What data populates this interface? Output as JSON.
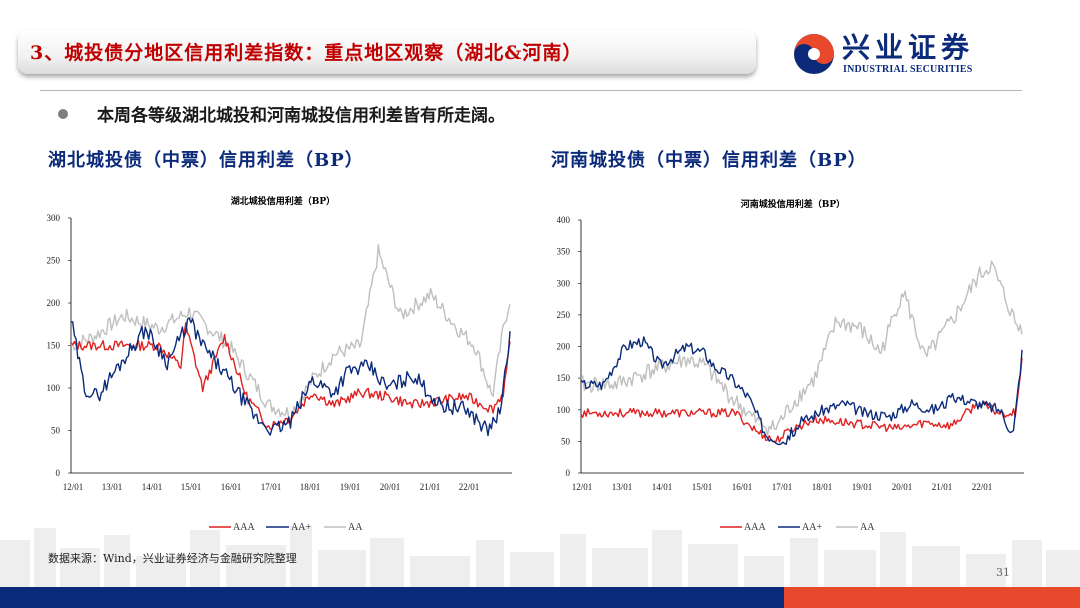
{
  "header": {
    "title": "3、城投债分地区信用利差指数：重点地区观察（湖北&河南）"
  },
  "logo": {
    "cn": "兴业证券",
    "en": "INDUSTRIAL SECURITIES",
    "colors": {
      "brand_blue": "#0b2a7a",
      "brand_red": "#e8482c"
    }
  },
  "bullet": "本周各等级湖北城投和河南城投信用利差皆有所走阔。",
  "left": {
    "subtitle": "湖北城投债（中票）信用利差（BP）",
    "chart_title": "湖北城投信用利差（BP）",
    "yticks": [
      "0",
      "50",
      "100",
      "150",
      "200",
      "250",
      "300"
    ],
    "xticks": [
      "12/01",
      "13/01",
      "14/01",
      "15/01",
      "16/01",
      "17/01",
      "18/01",
      "19/01",
      "20/01",
      "21/01",
      "22/01"
    ],
    "legend": [
      "AAA",
      "AA+",
      "AA"
    ]
  },
  "right": {
    "subtitle": "河南城投债（中票）信用利差（BP）",
    "chart_title": "河南城投信用利差（BP）",
    "yticks": [
      "0",
      "50",
      "100",
      "150",
      "200",
      "250",
      "300",
      "350",
      "400"
    ],
    "xticks": [
      "12/01",
      "13/01",
      "14/01",
      "15/01",
      "16/01",
      "17/01",
      "18/01",
      "19/01",
      "20/01",
      "21/01",
      "22/01"
    ],
    "legend": [
      "AAA",
      "AA+",
      "AA"
    ]
  },
  "series_colors": {
    "AAA": "#e02020",
    "AA+": "#0b2a7a",
    "AA": "#bfbfbf"
  },
  "footer": {
    "source": "数据来源：Wind，兴业证券经济与金融研究院整理",
    "page": "31"
  }
}
